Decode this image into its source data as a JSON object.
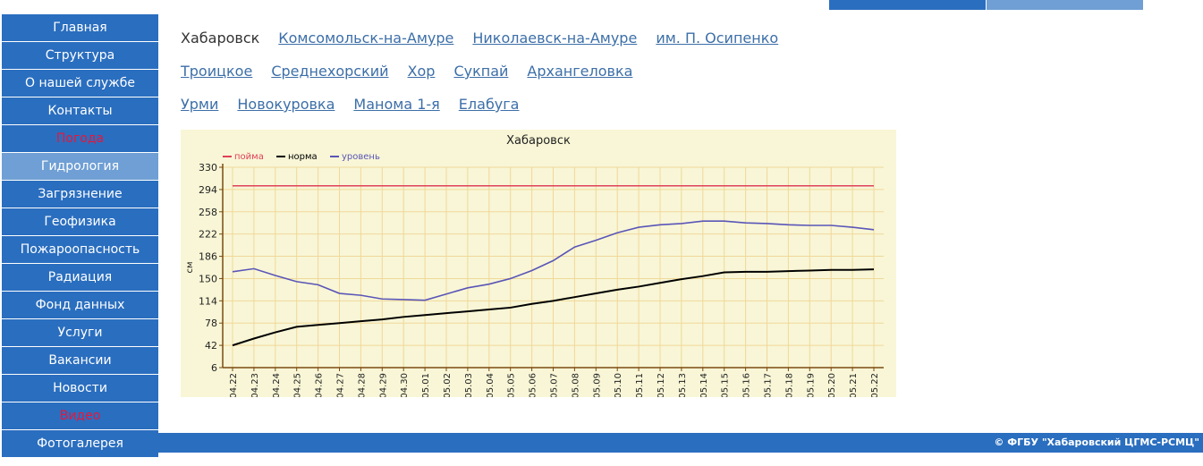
{
  "nav": {
    "items": [
      {
        "label": "Главная",
        "name": "nav-item-home"
      },
      {
        "label": "Структура",
        "name": "nav-item-structure"
      },
      {
        "label": "О нашей службе",
        "name": "nav-item-about"
      },
      {
        "label": "Контакты",
        "name": "nav-item-contacts"
      },
      {
        "label": "Погода",
        "name": "nav-item-weather"
      },
      {
        "label": "Гидрология",
        "name": "nav-item-hydrology"
      },
      {
        "label": "Загрязнение",
        "name": "nav-item-pollution"
      },
      {
        "label": "Геофизика",
        "name": "nav-item-geophysics"
      },
      {
        "label": "Пожароопасность",
        "name": "nav-item-fire-danger"
      },
      {
        "label": "Радиация",
        "name": "nav-item-radiation"
      },
      {
        "label": "Фонд данных",
        "name": "nav-item-data-fund"
      },
      {
        "label": "Услуги",
        "name": "nav-item-services"
      },
      {
        "label": "Вакансии",
        "name": "nav-item-vacancies"
      },
      {
        "label": "Новости",
        "name": "nav-item-news"
      },
      {
        "label": "Видео",
        "name": "nav-item-video"
      },
      {
        "label": "Фотогалерея",
        "name": "nav-item-photo-gallery"
      }
    ],
    "active_item": "Гидрология",
    "highlighted_items": [
      "Погода",
      "Видео"
    ]
  },
  "stations": {
    "current": "Хабаровск",
    "rows": [
      [
        "Хабаровск",
        "Комсомольск-на-Амуре",
        "Николаевск-на-Амуре",
        "им. П. Осипенко"
      ],
      [
        "Троицкое",
        "Среднехорский",
        "Хор",
        "Сукпай",
        "Архангеловка"
      ],
      [
        "Урми",
        "Новокуровка",
        "Манома 1-я",
        "Елабуга"
      ]
    ]
  },
  "footer": {
    "copyright": "© ФГБУ \"Хабаровский ЦГМС-РСМЦ\""
  },
  "colors": {
    "nav_bg": "#2a6ebf",
    "nav_active_bg": "#6f9fd4",
    "highlight_text": "#e8163a",
    "chart_bg": "#f8f6d6",
    "grid": "#f0d89a",
    "series_poima": "#e0405a",
    "series_norma": "#000000",
    "series_uroven": "#5a55b8"
  },
  "chart_data": {
    "type": "line",
    "title": "Хабаровск",
    "xlabel": "",
    "ylabel": "см",
    "ylim": [
      6,
      330
    ],
    "yticks": [
      6,
      42,
      78,
      114,
      150,
      186,
      222,
      258,
      294,
      330
    ],
    "grid": true,
    "legend_position": "top-left",
    "x": [
      "04.22",
      "04.23",
      "04.24",
      "04.25",
      "04.26",
      "04.27",
      "04.28",
      "04.29",
      "04.30",
      "05.01",
      "05.02",
      "05.03",
      "05.04",
      "05.05",
      "05.06",
      "05.07",
      "05.08",
      "05.09",
      "05.10",
      "05.11",
      "05.12",
      "05.13",
      "05.14",
      "05.15",
      "05.16",
      "05.17",
      "05.18",
      "05.19",
      "05.20",
      "05.21",
      "05.22"
    ],
    "series": [
      {
        "name": "пойма",
        "color": "#e0405a",
        "values": [
          300,
          300,
          300,
          300,
          300,
          300,
          300,
          300,
          300,
          300,
          300,
          300,
          300,
          300,
          300,
          300,
          300,
          300,
          300,
          300,
          300,
          300,
          300,
          300,
          300,
          300,
          300,
          300,
          300,
          300,
          300
        ]
      },
      {
        "name": "норма",
        "color": "#000000",
        "values": [
          42,
          53,
          63,
          72,
          75,
          78,
          81,
          84,
          88,
          91,
          94,
          97,
          100,
          103,
          109,
          114,
          120,
          126,
          132,
          137,
          143,
          149,
          154,
          160,
          161,
          161,
          162,
          163,
          164,
          164,
          165
        ]
      },
      {
        "name": "уровень",
        "color": "#5a55b8",
        "values": [
          161,
          166,
          155,
          145,
          140,
          126,
          123,
          117,
          116,
          115,
          125,
          135,
          141,
          150,
          163,
          179,
          201,
          212,
          224,
          233,
          237,
          239,
          243,
          243,
          240,
          239,
          237,
          236,
          236,
          233,
          229
        ]
      }
    ]
  }
}
